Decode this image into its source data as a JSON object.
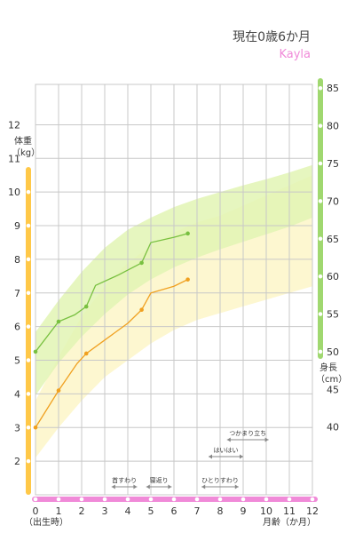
{
  "header": {
    "title": "現在0歳6か月",
    "name": "Kayla"
  },
  "colors": {
    "weight_line": "#f0a020",
    "height_line": "#78c040",
    "weight_band": "#fdf6c8",
    "height_band": "#e2f5b4",
    "weight_axis": "#ffc848",
    "height_axis": "#a0d870",
    "month_axis": "#f08ad8",
    "grid": "#c8c8c8"
  },
  "chart_data": {
    "type": "line",
    "title": "",
    "x": {
      "label": "月齢（か月）",
      "zero_note": "（出生時）",
      "range": [
        0,
        12
      ],
      "ticks": [
        "0",
        "1",
        "2",
        "3",
        "4",
        "5",
        "6",
        "7",
        "8",
        "9",
        "10",
        "11",
        "12"
      ]
    },
    "y_left": {
      "label_line1": "体重",
      "label_line2": "（kg）",
      "range": [
        1,
        13.2
      ],
      "ticks": [
        "2",
        "3",
        "4",
        "5",
        "6",
        "7",
        "8",
        "9",
        "10",
        "11",
        "12"
      ]
    },
    "y_right": {
      "label_line1": "身長",
      "label_line2": "（cm）",
      "range": [
        31,
        85.5
      ],
      "ticks": [
        "40",
        "45",
        "50",
        "55",
        "60",
        "65",
        "70",
        "75",
        "80",
        "85"
      ]
    },
    "series": [
      {
        "axis": "left",
        "points": [
          [
            0,
            3.0
          ],
          [
            1,
            4.1
          ],
          [
            1.8,
            4.9
          ],
          [
            2.2,
            5.2
          ],
          [
            3,
            5.6
          ],
          [
            4,
            6.1
          ],
          [
            4.6,
            6.5
          ],
          [
            5,
            7.0
          ],
          [
            6,
            7.2
          ],
          [
            6.6,
            7.4
          ]
        ],
        "markers": [
          [
            0,
            3.0
          ],
          [
            1,
            4.1
          ],
          [
            2.2,
            5.2
          ],
          [
            4.6,
            6.5
          ],
          [
            6.6,
            7.4
          ]
        ]
      },
      {
        "axis": "right",
        "points": [
          [
            0,
            50
          ],
          [
            1,
            54
          ],
          [
            1.7,
            54.9
          ],
          [
            2.2,
            56
          ],
          [
            2.6,
            58.8
          ],
          [
            3.6,
            60.2
          ],
          [
            4.6,
            61.8
          ],
          [
            5,
            64.5
          ],
          [
            6,
            65.2
          ],
          [
            6.6,
            65.7
          ]
        ],
        "markers": [
          [
            0,
            50
          ],
          [
            1,
            54
          ],
          [
            2.2,
            56
          ],
          [
            4.6,
            61.8
          ],
          [
            6.6,
            65.7
          ]
        ]
      }
    ],
    "bands": [
      {
        "axis": "left",
        "x": [
          0,
          1,
          2,
          3,
          4,
          5,
          6,
          7,
          8,
          9,
          10,
          11,
          12
        ],
        "lower": [
          2.1,
          3.0,
          3.8,
          4.5,
          5.0,
          5.5,
          5.9,
          6.2,
          6.4,
          6.6,
          6.8,
          7.0,
          7.2
        ],
        "upper": [
          3.8,
          5.1,
          6.3,
          7.2,
          7.9,
          8.4,
          8.8,
          9.1,
          9.3,
          9.6,
          9.9,
          10.2,
          10.5
        ]
      },
      {
        "axis": "right",
        "x": [
          0,
          1,
          2,
          3,
          4,
          5,
          6,
          7,
          8,
          9,
          10,
          11,
          12
        ],
        "lower": [
          44.2,
          48.5,
          52,
          55,
          57.6,
          59.6,
          61.2,
          62.5,
          63.6,
          64.6,
          65.6,
          66.6,
          67.8
        ],
        "upper": [
          52.6,
          56.8,
          60.6,
          63.8,
          66.2,
          67.8,
          69.2,
          70.3,
          71.2,
          72.1,
          72.9,
          73.8,
          74.8
        ]
      }
    ],
    "milestones": [
      {
        "label": "首すわり",
        "start": 3.3,
        "end": 4.4,
        "row": 0
      },
      {
        "label": "寝返り",
        "start": 4.8,
        "end": 5.9,
        "row": 0
      },
      {
        "label": "ひとりすわり",
        "start": 7.2,
        "end": 8.8,
        "row": 0
      },
      {
        "label": "はいはい",
        "start": 7.5,
        "end": 9.0,
        "row": 1
      },
      {
        "label": "つかまり立ち",
        "start": 8.3,
        "end": 10.1,
        "row": 2
      }
    ]
  }
}
